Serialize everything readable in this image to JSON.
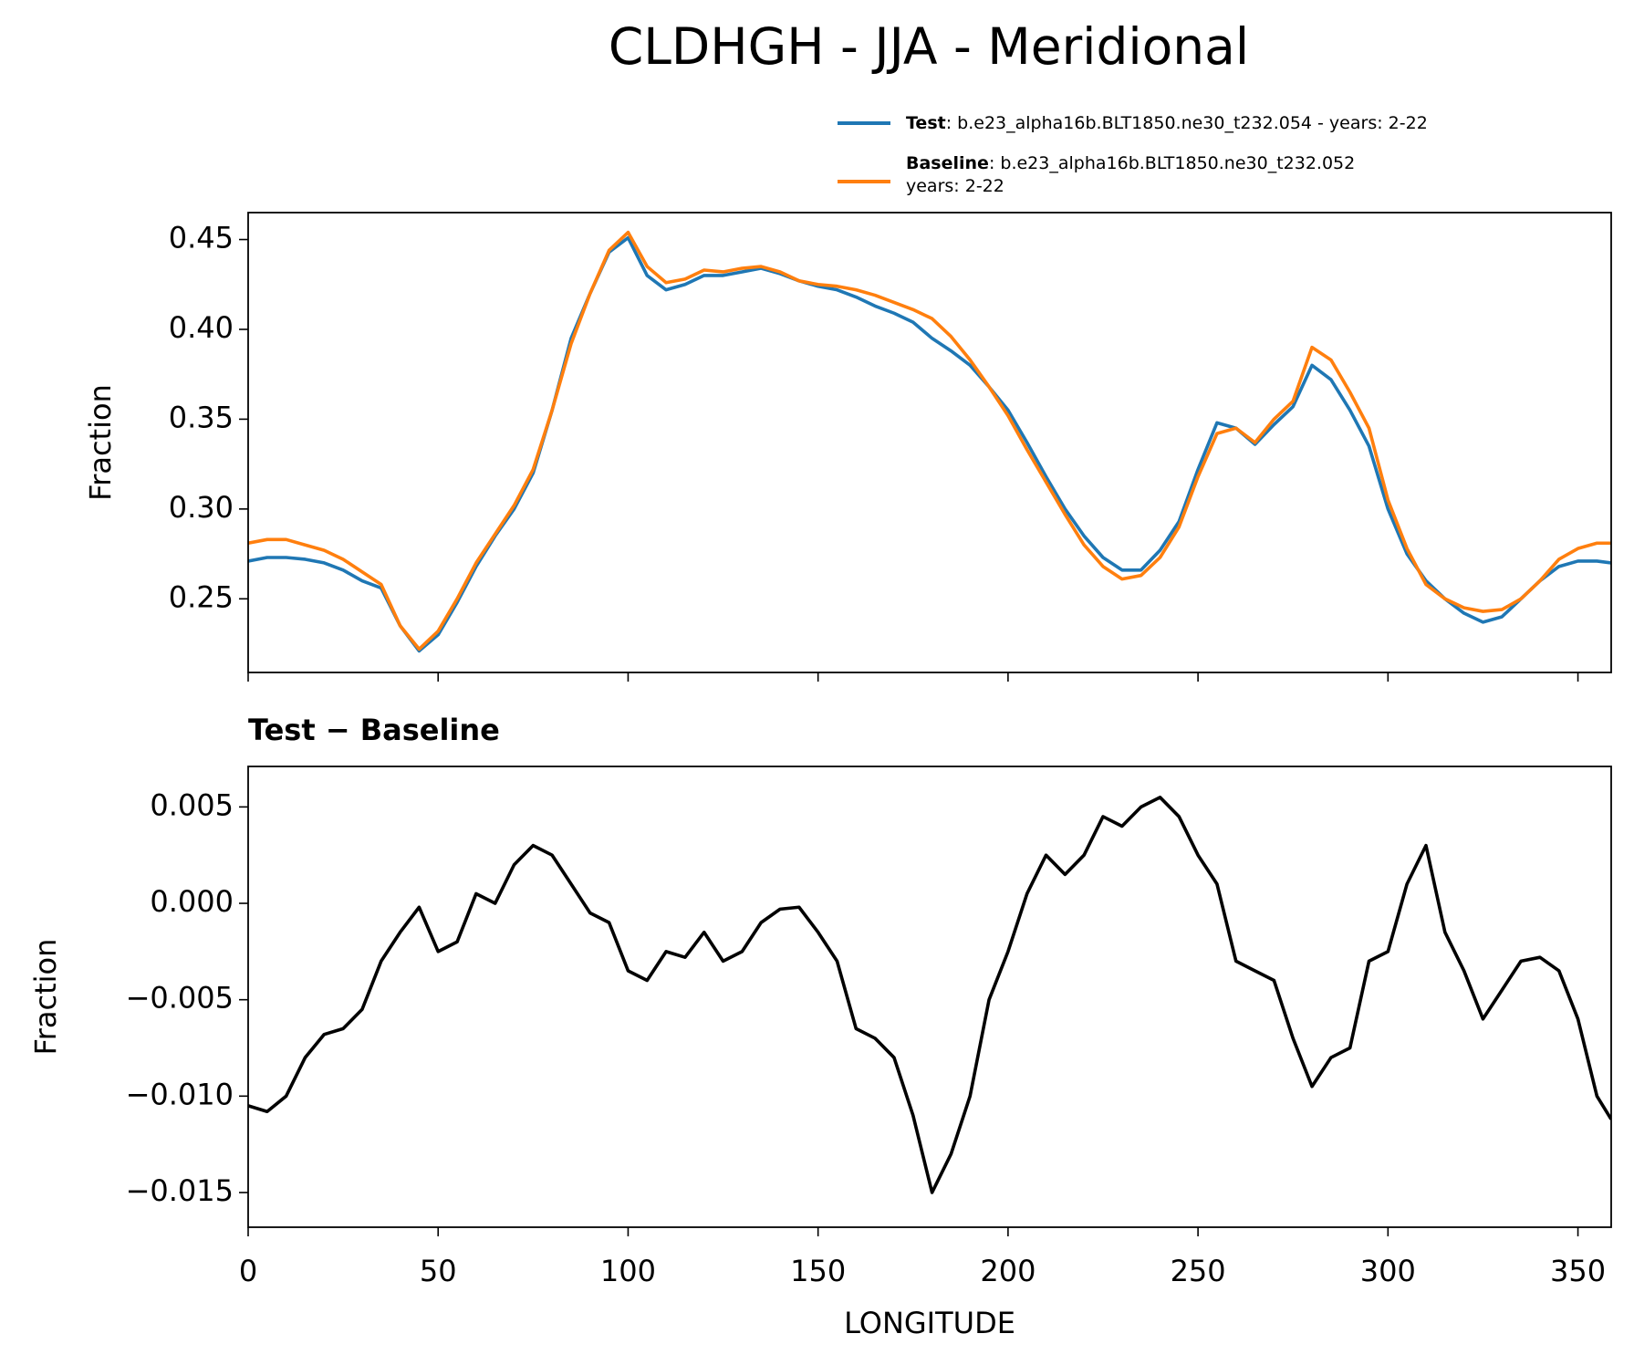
{
  "title": "CLDHGH - JJA - Meridional",
  "chart_data": [
    {
      "type": "line",
      "ylabel": "Fraction",
      "x": [
        0,
        5,
        10,
        15,
        20,
        25,
        30,
        35,
        40,
        45,
        50,
        55,
        60,
        65,
        70,
        75,
        80,
        85,
        90,
        95,
        100,
        105,
        110,
        115,
        120,
        125,
        130,
        135,
        140,
        145,
        150,
        155,
        160,
        165,
        170,
        175,
        180,
        185,
        190,
        195,
        200,
        205,
        210,
        215,
        220,
        225,
        230,
        235,
        240,
        245,
        250,
        255,
        260,
        265,
        270,
        275,
        280,
        285,
        290,
        295,
        300,
        305,
        310,
        315,
        320,
        325,
        330,
        335,
        340,
        345,
        350,
        355,
        358.75
      ],
      "series": [
        {
          "name": "Test",
          "description": [
            ": b.e23_alpha16b.BLT1850.ne30_t232.054 - years: 2-22"
          ],
          "color": "#1f77b4",
          "values": [
            0.271,
            0.273,
            0.273,
            0.272,
            0.27,
            0.266,
            0.26,
            0.256,
            0.235,
            0.221,
            0.23,
            0.248,
            0.268,
            0.285,
            0.3,
            0.32,
            0.355,
            0.395,
            0.42,
            0.443,
            0.451,
            0.43,
            0.422,
            0.425,
            0.43,
            0.43,
            0.432,
            0.434,
            0.431,
            0.427,
            0.424,
            0.422,
            0.418,
            0.413,
            0.409,
            0.404,
            0.395,
            0.388,
            0.38,
            0.368,
            0.355,
            0.337,
            0.318,
            0.3,
            0.285,
            0.273,
            0.266,
            0.266,
            0.277,
            0.293,
            0.322,
            0.348,
            0.345,
            0.336,
            0.347,
            0.357,
            0.38,
            0.372,
            0.355,
            0.335,
            0.3,
            0.275,
            0.26,
            0.25,
            0.242,
            0.237,
            0.24,
            0.25,
            0.26,
            0.268,
            0.271,
            0.271,
            0.27
          ]
        },
        {
          "name": "Baseline",
          "description": [
            ": b.e23_alpha16b.BLT1850.ne30_t232.052",
            "years: 2-22"
          ],
          "color": "#ff7f0e",
          "values": [
            0.281,
            0.283,
            0.283,
            0.28,
            0.277,
            0.272,
            0.265,
            0.258,
            0.235,
            0.222,
            0.232,
            0.25,
            0.27,
            0.286,
            0.302,
            0.322,
            0.355,
            0.392,
            0.42,
            0.444,
            0.454,
            0.435,
            0.426,
            0.428,
            0.433,
            0.432,
            0.434,
            0.435,
            0.432,
            0.427,
            0.425,
            0.424,
            0.422,
            0.419,
            0.415,
            0.411,
            0.406,
            0.396,
            0.383,
            0.368,
            0.352,
            0.333,
            0.315,
            0.297,
            0.28,
            0.268,
            0.261,
            0.263,
            0.273,
            0.29,
            0.318,
            0.342,
            0.345,
            0.337,
            0.35,
            0.36,
            0.39,
            0.383,
            0.365,
            0.345,
            0.305,
            0.278,
            0.258,
            0.25,
            0.245,
            0.243,
            0.244,
            0.25,
            0.26,
            0.272,
            0.278,
            0.281,
            0.281
          ]
        }
      ],
      "xlim": [
        0,
        358.75
      ],
      "xticks": [
        0,
        50,
        100,
        150,
        200,
        250,
        300,
        350
      ],
      "ylim": [
        0.209,
        0.465
      ],
      "yticks": [
        0.25,
        {
          "value": 0.3,
          "label": "0.30"
        },
        0.35,
        {
          "value": 0.4,
          "label": "0.40"
        },
        0.45
      ]
    },
    {
      "type": "line",
      "title": "Test − Baseline",
      "ylabel": "Fraction",
      "xlabel": "LONGITUDE",
      "color": "#000000",
      "x": [
        0,
        5,
        10,
        15,
        20,
        25,
        30,
        35,
        40,
        45,
        50,
        55,
        60,
        65,
        70,
        75,
        80,
        85,
        90,
        95,
        100,
        105,
        110,
        115,
        120,
        125,
        130,
        135,
        140,
        145,
        150,
        155,
        160,
        165,
        170,
        175,
        180,
        185,
        190,
        195,
        200,
        205,
        210,
        215,
        220,
        225,
        230,
        235,
        240,
        245,
        250,
        255,
        260,
        265,
        270,
        275,
        280,
        285,
        290,
        295,
        300,
        305,
        310,
        315,
        320,
        325,
        330,
        335,
        340,
        345,
        350,
        355,
        358.75
      ],
      "values": [
        -0.0105,
        -0.0108,
        -0.01,
        -0.008,
        -0.0068,
        -0.0065,
        -0.0055,
        -0.003,
        -0.0015,
        -0.0002,
        -0.0025,
        -0.002,
        0.0005,
        0.0,
        0.002,
        0.003,
        0.0025,
        0.001,
        -0.0005,
        -0.001,
        -0.0035,
        -0.004,
        -0.0025,
        -0.0028,
        -0.0015,
        -0.003,
        -0.0025,
        -0.001,
        -0.0003,
        -0.0002,
        -0.0015,
        -0.003,
        -0.0065,
        -0.007,
        -0.008,
        -0.011,
        -0.015,
        -0.013,
        -0.01,
        -0.005,
        -0.0025,
        0.0005,
        0.0025,
        0.0015,
        0.0025,
        0.0045,
        0.004,
        0.005,
        0.0055,
        0.0045,
        0.0025,
        0.001,
        -0.003,
        -0.0035,
        -0.004,
        -0.007,
        -0.0095,
        -0.008,
        -0.0075,
        -0.003,
        -0.0025,
        0.001,
        0.003,
        -0.0015,
        -0.0035,
        -0.006,
        -0.0045,
        -0.003,
        -0.0028,
        -0.0035,
        -0.006,
        -0.01,
        -0.0112
      ],
      "xlim": [
        0,
        358.75
      ],
      "xticks": [
        0,
        50,
        100,
        150,
        200,
        250,
        300,
        350
      ],
      "ylim": [
        -0.0168,
        0.0071
      ],
      "yticks": [
        0.005,
        {
          "value": 0,
          "label": "0.000"
        },
        {
          "value": -0.005,
          "label": "−0.005"
        },
        {
          "value": -0.01,
          "label": "−0.010"
        },
        {
          "value": -0.015,
          "label": "−0.015"
        }
      ]
    }
  ]
}
